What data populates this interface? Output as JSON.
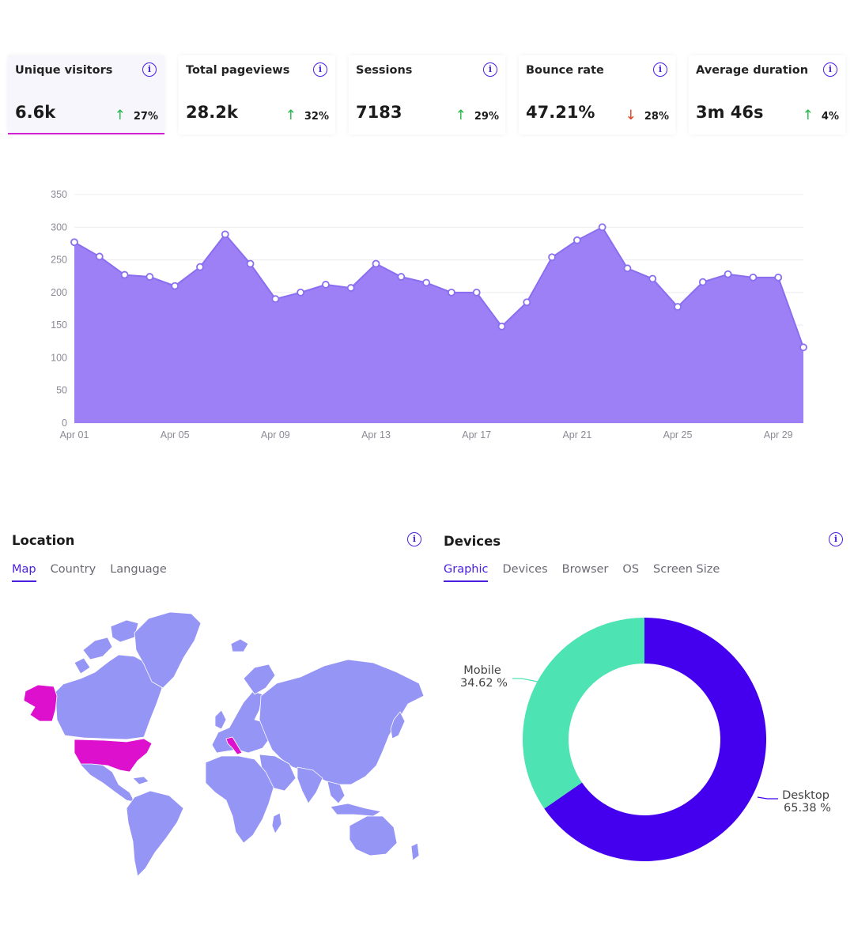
{
  "kpis": [
    {
      "label": "Unique visitors",
      "value": "6.6k",
      "change": "27%",
      "direction": "up",
      "active": true
    },
    {
      "label": "Total pageviews",
      "value": "28.2k",
      "change": "32%",
      "direction": "up",
      "active": false
    },
    {
      "label": "Sessions",
      "value": "7183",
      "change": "29%",
      "direction": "up",
      "active": false
    },
    {
      "label": "Bounce rate",
      "value": "47.21%",
      "change": "28%",
      "direction": "down",
      "active": false
    },
    {
      "label": "Average duration",
      "value": "3m 46s",
      "change": "4%",
      "direction": "up",
      "active": false
    }
  ],
  "icons": {
    "info": "info-icon",
    "arrow_up": "arrow-up-icon",
    "arrow_down": "arrow-down-icon"
  },
  "info_glyph": "i",
  "arrow_up_glyph": "↑",
  "arrow_down_glyph": "↓",
  "colors": {
    "accent": "#4b1fe0",
    "area_fill": "#9d80f5",
    "area_line": "#8a6ef0",
    "map_land": "#9595f5",
    "map_highlight": "#dd10cd",
    "desktop": "#4400ee",
    "mobile": "#4de3b2",
    "up": "#22b84a",
    "down": "#e0401f"
  },
  "chart_data": {
    "type": "area",
    "x": [
      "Apr 01",
      "Apr 02",
      "Apr 03",
      "Apr 04",
      "Apr 05",
      "Apr 06",
      "Apr 07",
      "Apr 08",
      "Apr 09",
      "Apr 10",
      "Apr 11",
      "Apr 12",
      "Apr 13",
      "Apr 14",
      "Apr 15",
      "Apr 16",
      "Apr 17",
      "Apr 18",
      "Apr 19",
      "Apr 20",
      "Apr 21",
      "Apr 22",
      "Apr 23",
      "Apr 24",
      "Apr 25",
      "Apr 26",
      "Apr 27",
      "Apr 28",
      "Apr 29",
      "Apr 30"
    ],
    "values": [
      277,
      255,
      227,
      224,
      210,
      239,
      289,
      244,
      190,
      200,
      212,
      207,
      244,
      224,
      215,
      200,
      200,
      148,
      185,
      254,
      280,
      300,
      237,
      221,
      178,
      216,
      228,
      223,
      223,
      116
    ],
    "x_tick_labels": [
      "Apr 01",
      "Apr 05",
      "Apr 09",
      "Apr 13",
      "Apr 17",
      "Apr 21",
      "Apr 25",
      "Apr 29"
    ],
    "y_ticks": [
      0,
      50,
      100,
      150,
      200,
      250,
      300,
      350
    ],
    "ylim": [
      0,
      350
    ],
    "grid": true
  },
  "location": {
    "title": "Location",
    "tabs": [
      {
        "label": "Map",
        "active": true
      },
      {
        "label": "Country",
        "active": false
      },
      {
        "label": "Language",
        "active": false
      }
    ],
    "highlighted": [
      "United States",
      "Alaska",
      "Italy"
    ]
  },
  "devices": {
    "title": "Devices",
    "tabs": [
      {
        "label": "Graphic",
        "active": true
      },
      {
        "label": "Devices",
        "active": false
      },
      {
        "label": "Browser",
        "active": false
      },
      {
        "label": "OS",
        "active": false
      },
      {
        "label": "Screen Size",
        "active": false
      }
    ],
    "donut": {
      "type": "pie",
      "slices": [
        {
          "name": "Desktop",
          "value": 65.38,
          "label": "65.38 %"
        },
        {
          "name": "Mobile",
          "value": 34.62,
          "label": "34.62 %"
        }
      ]
    }
  }
}
